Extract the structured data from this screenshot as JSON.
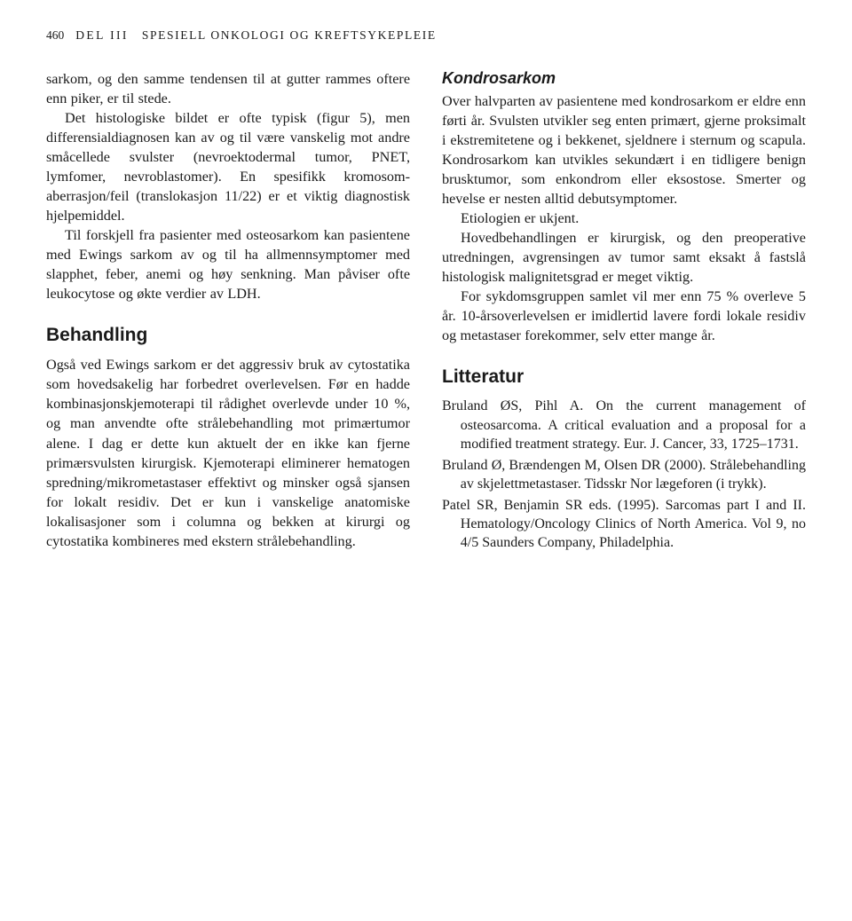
{
  "header": {
    "pagenum": "460",
    "part": "DEL III",
    "rest": "SPESIELL ONKOLOGI OG KREFTSYKEPLEIE"
  },
  "left": {
    "p1": "sarkom, og den samme tendensen til at gutter rammes oftere enn piker, er til stede.",
    "p2": "Det histologiske bildet er ofte typisk (figur 5), men differensialdiagnosen kan av og til være vanskelig mot andre småcellede svulster (nevroektodermal tumor, PNET, lymfomer, nevroblastomer). En spesifikk kromosom­aberrasjon/feil (translokasjon 11/22) er et viktig diagnostisk hjelpemiddel.",
    "p3": "Til forskjell fra pasienter med osteosarkom kan pasientene med Ewings sarkom av og til ha allmennsymptomer med slapphet, feber, anemi og høy senkning. Man påviser ofte leukocytose og økte verdier av LDH.",
    "h_behandling": "Behandling",
    "p4": "Også ved Ewings sarkom er det aggressiv bruk av cytostatika som hovedsakelig har forbedret overlevelsen. Før en hadde kombinasjonskjemoterapi til rådighet overlevde under 10 %, og man anvendte ofte strålebehandling mot primærtumor alene. I dag er dette kun aktuelt der en ikke kan fjerne primærsvulsten kirurgisk. Kjemoterapi eliminerer hematogen spredning/mikrometastaser effektivt og minsker også sjansen for lokalt residiv. Det er kun i vanskelige anatomiske lokalisasjoner som i columna og bekken at kirurgi og cytostatika kombineres med ekstern strålebehandling."
  },
  "right": {
    "h_kondro": "Kondrosarkom",
    "p1": "Over halvparten av pasientene med kondrosarkom er eldre enn førti år. Svulsten utvikler seg enten primært, gjerne proksimalt i ekstremitetene og i bekkenet, sjeldnere i sternum og scapula. Kondrosarkom kan utvikles sekundært i en tidligere benign brusktumor, som enkondrom eller eksostose. Smerter og hevelse er nesten alltid debutsymptomer.",
    "p2": "Etiologien er ukjent.",
    "p3": "Hovedbehandlingen er kirurgisk, og den preoperative utredningen, avgrensingen av tumor samt eksakt å fastslå histologisk malignitetsgrad er meget viktig.",
    "p4": "For sykdomsgruppen samlet vil mer enn 75 % overleve 5 år. 10-årsoverlevelsen er imidlertid lavere fordi lokale residiv og metastaser forekommer, selv etter mange år.",
    "h_litteratur": "Litteratur",
    "ref1": "Bruland ØS, Pihl A. On the current management of osteosarcoma. A critical evaluation and a proposal for a modified treatment strategy. Eur. J. Cancer, 33, 1725–1731.",
    "ref2": "Bruland Ø, Brændengen M, Olsen DR (2000). Strålebehandling av skjelettmetastaser. Tidsskr Nor lægeforen (i trykk).",
    "ref3": "Patel SR, Benjamin SR eds. (1995). Sarcomas part I and II. Hematology/Oncology Clinics of North America. Vol 9, no 4/5 Saunders Company, Philadelphia."
  }
}
